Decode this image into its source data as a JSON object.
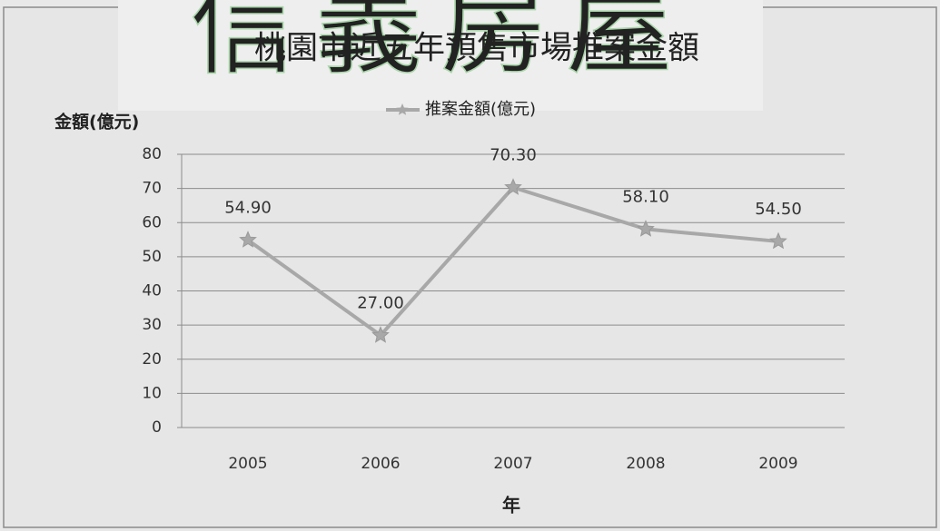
{
  "watermark": "信義房屋",
  "chart_data": {
    "type": "line",
    "title": "桃園市近五年預售市場推案金額",
    "y_label": "金額(億元)",
    "x_label": "年",
    "categories": [
      "2005",
      "2006",
      "2007",
      "2008",
      "2009"
    ],
    "series": [
      {
        "name": "推案金額(億元)",
        "color": "#a8a8a8",
        "values": [
          54.9,
          27.0,
          70.3,
          58.1,
          54.5
        ],
        "value_labels": [
          "54.90",
          "27.00",
          "70.30",
          "58.10",
          "54.50"
        ]
      }
    ],
    "ylim": [
      0,
      80
    ],
    "yticks": [
      0,
      10,
      20,
      30,
      40,
      50,
      60,
      70,
      80
    ],
    "grid": true
  }
}
